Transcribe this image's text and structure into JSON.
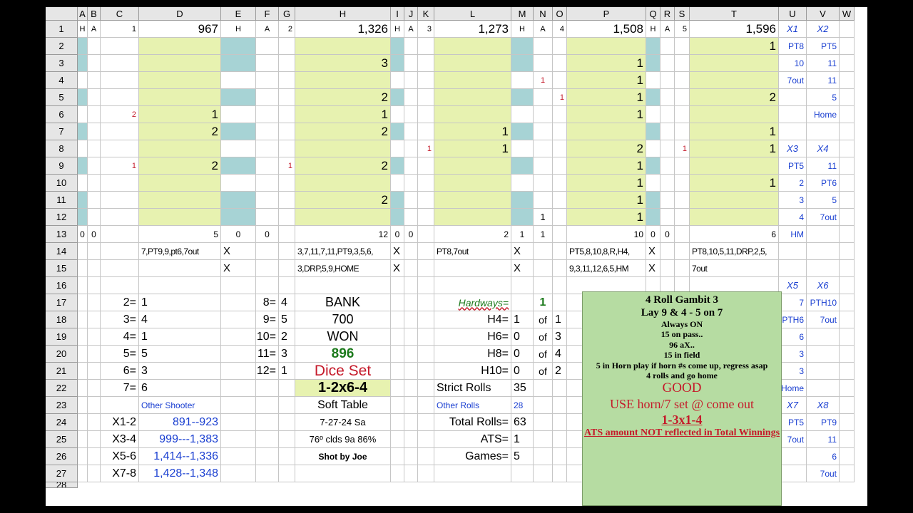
{
  "columns": [
    "A",
    "B",
    "C",
    "D",
    "E",
    "F",
    "G",
    "H",
    "I",
    "J",
    "K",
    "L",
    "M",
    "N",
    "O",
    "P",
    "Q",
    "R",
    "S",
    "T",
    "U",
    "V",
    "W"
  ],
  "rows": [
    "1",
    "2",
    "3",
    "4",
    "5",
    "6",
    "7",
    "8",
    "9",
    "10",
    "11",
    "12",
    "13",
    "14",
    "15",
    "16",
    "17",
    "18",
    "19",
    "20",
    "21",
    "22",
    "23",
    "24",
    "25",
    "26",
    "27",
    "28"
  ],
  "colors": {
    "yellow_fill": "#e7f2b0",
    "teal_fill": "#a7d3d5",
    "green_box": "#b6dca2",
    "blue_text": "#1a3fd1",
    "red_text": "#c51a2a",
    "green_text": "#1c7a1c"
  },
  "cells": {
    "A1": "H",
    "B1": "A",
    "C1": "1",
    "D1": "967",
    "E1": "H",
    "F1": "A",
    "G1": "2",
    "H1": "1,326",
    "I1": "H",
    "J1": "A",
    "K1": "3",
    "L1": "1,273",
    "M1": "H",
    "N1": "A",
    "O1": "4",
    "P1": "1,508",
    "Q1": "H",
    "R1": "A",
    "S1": "5",
    "T1": "1,596",
    "U1": "X1",
    "V1": "X2",
    "T2": "1",
    "U2": "PT8",
    "V2": "PT5",
    "H3": "3",
    "P3": "1",
    "U3": "10",
    "V3": "11",
    "N4": "1",
    "P4": "1",
    "U4": "7out",
    "V4": "11",
    "H5": "2",
    "O5": "1",
    "P5": "1",
    "T5": "2",
    "V5": "5",
    "C6": "2",
    "D6": "1",
    "H6": "1",
    "P6": "1",
    "V6": "Home",
    "D7": "2",
    "H7": "2",
    "L7": "1",
    "T7": "1",
    "K8": "1",
    "L8": "1",
    "P8": "2",
    "S8": "1",
    "T8": "1",
    "U8": "X3",
    "V8": "X4",
    "C9": "1",
    "D9": "2",
    "G9": "1",
    "H9": "2",
    "P9": "1",
    "U9": "PT5",
    "V9": "11",
    "P10": "1",
    "T10": "1",
    "U10": "2",
    "V10": "PT6",
    "H11": "2",
    "P11": "1",
    "U11": "3",
    "V11": "5",
    "N12": "1",
    "P12": "1",
    "U12": "4",
    "V12": "7out",
    "A13": "0",
    "B13": "0",
    "D13": "5",
    "E13": "0",
    "F13": "0",
    "H13": "12",
    "I13": "0",
    "J13": "0",
    "L13": "2",
    "M13": "1",
    "N13": "1",
    "P13": "10",
    "Q13": "0",
    "R13": "0",
    "T13": "6",
    "U13": "HM",
    "D14": "7,PT9,9,pt6,7out",
    "E14": "X",
    "H14": "3,7,11,7,11,PT9,3,5,6,",
    "I14": "X",
    "L14": "PT8,7out",
    "M14": "X",
    "P14": "PT5,8,10,8,R,H4,",
    "Q14": "X",
    "T14": "PT8,10,5,11,DRP,2,5,",
    "E15": "X",
    "H15": "3,DRP,5,9,HOME",
    "I15": "X",
    "M15": "X",
    "P15": "9,3,11,12,6,5,HM",
    "Q15": "X",
    "T15": "7out",
    "U16": "X5",
    "V16": "X6",
    "C17": "2=",
    "D17": "1",
    "F17": "8=",
    "G17": "4",
    "H17": "BANK",
    "L17": "Hardways=",
    "N17": "1",
    "U17": "7",
    "V17": "PTH10",
    "C18": "3=",
    "D18": "4",
    "F18": "9=",
    "G18": "5",
    "H18": "700",
    "L18": "H4=",
    "M18": "1",
    "N18": "of",
    "O18": "1",
    "U18": "PTH6",
    "V18": "7out",
    "C19": "4=",
    "D19": "1",
    "F19": "10=",
    "G19": "2",
    "H19": "WON",
    "L19": "H6=",
    "M19": "0",
    "N19": "of",
    "O19": "3",
    "U19": "6",
    "C20": "5=",
    "D20": "5",
    "F20": "11=",
    "G20": "3",
    "H20": "896",
    "L20": "H8=",
    "M20": "0",
    "N20": "of",
    "O20": "4",
    "U20": "3",
    "C21": "6=",
    "D21": "3",
    "F21": "12=",
    "G21": "1",
    "H21": "Dice Set",
    "L21": "H10=",
    "M21": "0",
    "N21": "of",
    "O21": "2",
    "U21": "3",
    "C22": "7=",
    "D22": "6",
    "H22": "1-2x6-4",
    "L22": "Strict Rolls",
    "M22": "35",
    "U22": "Home",
    "D23": "Other Shooter",
    "H23": "Soft Table",
    "L23": "Other Rolls",
    "M23": "28",
    "U23": "X7",
    "V23": "X8",
    "C24": "X1-2",
    "D24": "891--923",
    "H24": "7-27-24 Sa",
    "L24": "Total Rolls=",
    "M24": "63",
    "U24": "PT5",
    "V24": "PT9",
    "C25": "X3-4",
    "D25": "999---1,383",
    "H25": "76º clds 9a 86%",
    "L25": "ATS=",
    "M25": "1",
    "U25": "7out",
    "V25": "11",
    "C26": "X5-6",
    "D26": "1,414--1,336",
    "H26": "Shot by Joe",
    "L26": "Games=",
    "M26": "5",
    "V26": "6",
    "C27": "X7-8",
    "D27": "1,428--1,348",
    "V27": "7out"
  },
  "gambit_box": {
    "line1": "4 Roll Gambit 3",
    "line2": "Lay 9 & 4 - 5 on 7",
    "line3": "Always ON",
    "line4": "15 on pass..",
    "line5": "96 aX..",
    "line6": "15 in field",
    "line7": "5 in Horn play if horn #s come up, regress asap",
    "line8": "4 rolls and go home",
    "line9": "GOOD",
    "line10": "USE horn/7 set @ come out",
    "line11": "1-3x1-4",
    "line12": "ATS amount NOT reflected in Total Winnings"
  }
}
